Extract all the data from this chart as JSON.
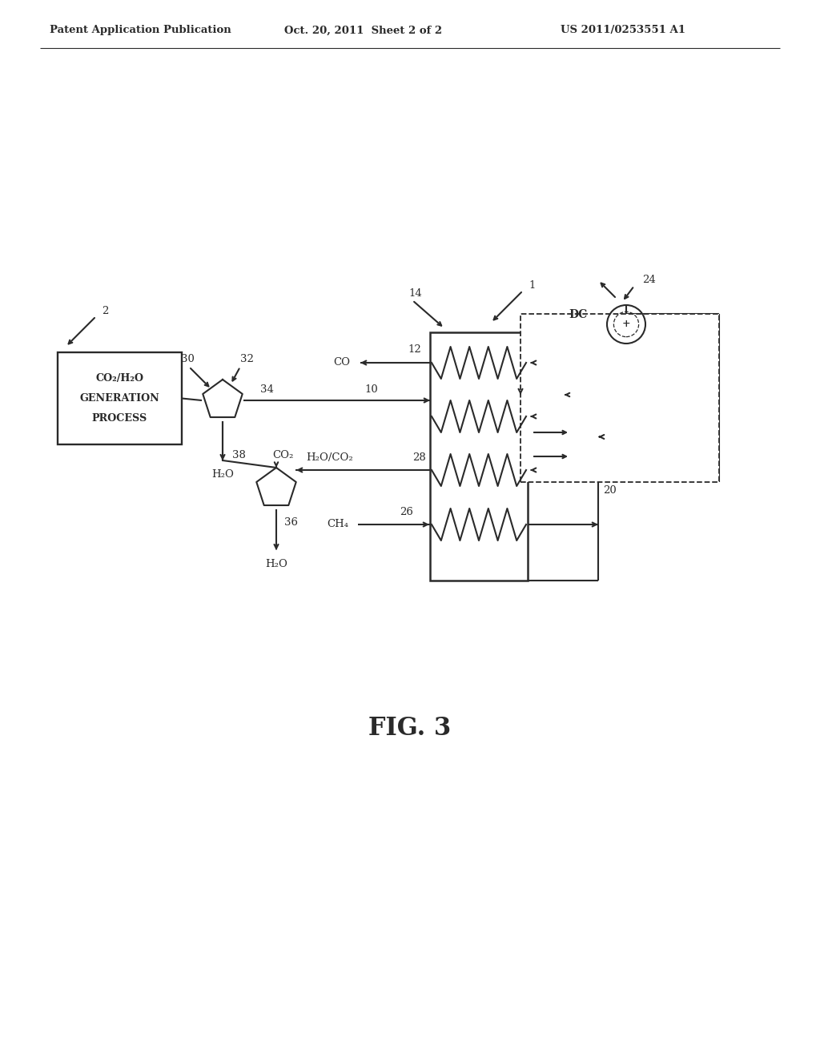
{
  "header_left": "Patent Application Publication",
  "header_center": "Oct. 20, 2011  Sheet 2 of 2",
  "header_right": "US 2011/0253551 A1",
  "fig_label": "FIG. 3",
  "bg_color": "#ffffff",
  "lc": "#2a2a2a"
}
